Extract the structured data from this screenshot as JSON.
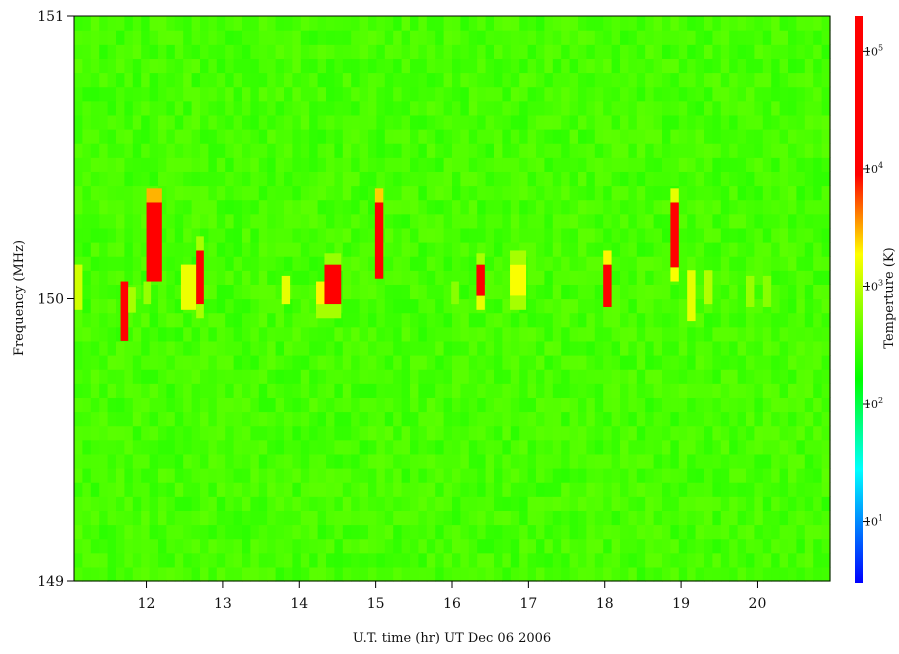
{
  "chart_data": {
    "type": "heatmap",
    "title": "",
    "xlabel": "U.T. time (hr) UT Dec 06 2006",
    "ylabel": "Frequency (MHz)",
    "colorbar_label": "Temperture (K)",
    "xlim": [
      11.05,
      20.95
    ],
    "ylim": [
      149,
      151
    ],
    "x_ticks": [
      12,
      13,
      14,
      15,
      16,
      17,
      18,
      19,
      20
    ],
    "y_ticks": [
      149,
      150,
      151
    ],
    "colorbar": {
      "scale": "log",
      "range": [
        3,
        200000
      ],
      "ticks": [
        {
          "base": "10",
          "exp": "1",
          "value": 10
        },
        {
          "base": "10",
          "exp": "2",
          "value": 100
        },
        {
          "base": "10",
          "exp": "3",
          "value": 1000
        },
        {
          "base": "10",
          "exp": "4",
          "value": 10000
        },
        {
          "base": "10",
          "exp": "5",
          "value": 100000
        }
      ],
      "colors": [
        "#0000ff",
        "#00ffff",
        "#00ff00",
        "#ffff00",
        "#ff0000"
      ]
    },
    "background_temperature_K": 300,
    "cell_size": {
      "dt_hr": 0.11,
      "df_mhz": 0.05
    },
    "bursts": [
      {
        "t_start": 11.05,
        "t_end": 11.16,
        "f_low": 149.96,
        "f_high": 150.12,
        "temperature_K": 1200
      },
      {
        "t_start": 11.66,
        "t_end": 11.76,
        "f_low": 149.85,
        "f_high": 150.06,
        "temperature_K": 50000
      },
      {
        "t_start": 11.76,
        "t_end": 11.86,
        "f_low": 149.95,
        "f_high": 150.04,
        "temperature_K": 800
      },
      {
        "t_start": 11.96,
        "t_end": 12.06,
        "f_low": 149.98,
        "f_high": 150.06,
        "temperature_K": 700
      },
      {
        "t_start": 12.0,
        "t_end": 12.2,
        "f_low": 150.06,
        "f_high": 150.34,
        "temperature_K": 50000
      },
      {
        "t_start": 12.0,
        "t_end": 12.2,
        "f_low": 150.34,
        "f_high": 150.39,
        "temperature_K": 3000
      },
      {
        "t_start": 12.45,
        "t_end": 12.65,
        "f_low": 149.96,
        "f_high": 150.12,
        "temperature_K": 1600
      },
      {
        "t_start": 12.65,
        "t_end": 12.75,
        "f_low": 149.98,
        "f_high": 150.17,
        "temperature_K": 50000
      },
      {
        "t_start": 12.65,
        "t_end": 12.75,
        "f_low": 149.93,
        "f_high": 149.98,
        "temperature_K": 800
      },
      {
        "t_start": 12.65,
        "t_end": 12.75,
        "f_low": 150.17,
        "f_high": 150.22,
        "temperature_K": 800
      },
      {
        "t_start": 13.77,
        "t_end": 13.88,
        "f_low": 149.98,
        "f_high": 150.08,
        "temperature_K": 1500
      },
      {
        "t_start": 14.22,
        "t_end": 14.33,
        "f_low": 149.96,
        "f_high": 150.06,
        "temperature_K": 2000
      },
      {
        "t_start": 14.33,
        "t_end": 14.55,
        "f_low": 149.98,
        "f_high": 150.12,
        "temperature_K": 50000
      },
      {
        "t_start": 14.22,
        "t_end": 14.55,
        "f_low": 149.93,
        "f_high": 149.98,
        "temperature_K": 800
      },
      {
        "t_start": 14.33,
        "t_end": 14.55,
        "f_low": 150.12,
        "f_high": 150.16,
        "temperature_K": 700
      },
      {
        "t_start": 14.99,
        "t_end": 15.1,
        "f_low": 150.07,
        "f_high": 150.34,
        "temperature_K": 50000
      },
      {
        "t_start": 14.99,
        "t_end": 15.1,
        "f_low": 150.34,
        "f_high": 150.39,
        "temperature_K": 2500
      },
      {
        "t_start": 15.99,
        "t_end": 16.09,
        "f_low": 149.98,
        "f_high": 150.06,
        "temperature_K": 600
      },
      {
        "t_start": 16.32,
        "t_end": 16.43,
        "f_low": 150.01,
        "f_high": 150.12,
        "temperature_K": 50000
      },
      {
        "t_start": 16.32,
        "t_end": 16.43,
        "f_low": 149.96,
        "f_high": 150.01,
        "temperature_K": 1500
      },
      {
        "t_start": 16.32,
        "t_end": 16.43,
        "f_low": 150.12,
        "f_high": 150.16,
        "temperature_K": 800
      },
      {
        "t_start": 16.76,
        "t_end": 16.97,
        "f_low": 150.01,
        "f_high": 150.12,
        "temperature_K": 1800
      },
      {
        "t_start": 16.76,
        "t_end": 16.97,
        "f_low": 149.96,
        "f_high": 150.01,
        "temperature_K": 800
      },
      {
        "t_start": 16.76,
        "t_end": 16.97,
        "f_low": 150.12,
        "f_high": 150.17,
        "temperature_K": 800
      },
      {
        "t_start": 17.98,
        "t_end": 18.09,
        "f_low": 149.97,
        "f_high": 150.12,
        "temperature_K": 50000
      },
      {
        "t_start": 17.98,
        "t_end": 18.09,
        "f_low": 150.12,
        "f_high": 150.17,
        "temperature_K": 2000
      },
      {
        "t_start": 18.86,
        "t_end": 18.97,
        "f_low": 150.11,
        "f_high": 150.34,
        "temperature_K": 50000
      },
      {
        "t_start": 18.86,
        "t_end": 18.97,
        "f_low": 150.06,
        "f_high": 150.11,
        "temperature_K": 1800
      },
      {
        "t_start": 18.86,
        "t_end": 18.97,
        "f_low": 150.34,
        "f_high": 150.39,
        "temperature_K": 1500
      },
      {
        "t_start": 19.08,
        "t_end": 19.19,
        "f_low": 149.92,
        "f_high": 150.1,
        "temperature_K": 1500
      },
      {
        "t_start": 19.3,
        "t_end": 19.41,
        "f_low": 149.98,
        "f_high": 150.1,
        "temperature_K": 900
      },
      {
        "t_start": 19.85,
        "t_end": 19.96,
        "f_low": 149.97,
        "f_high": 150.08,
        "temperature_K": 700
      },
      {
        "t_start": 20.07,
        "t_end": 20.18,
        "f_low": 149.97,
        "f_high": 150.08,
        "temperature_K": 600
      }
    ]
  }
}
